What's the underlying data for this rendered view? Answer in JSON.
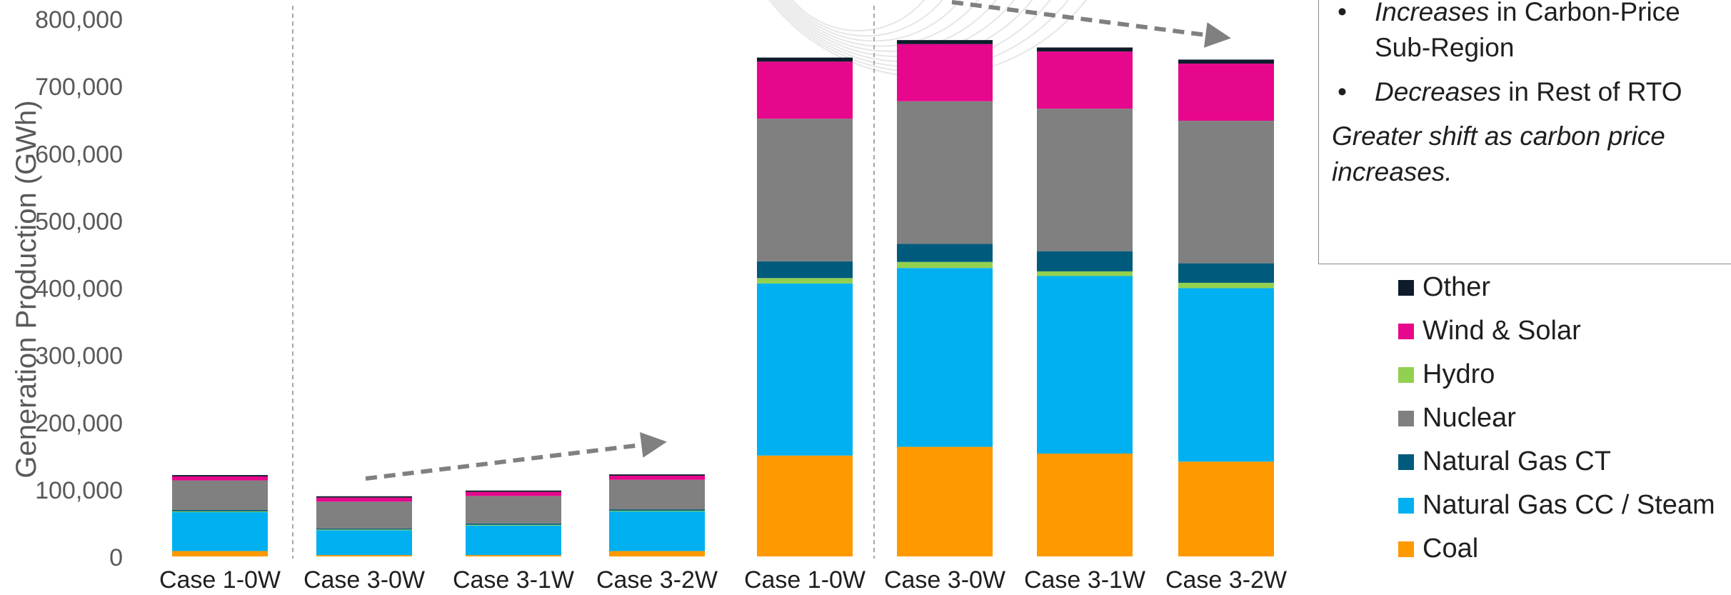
{
  "chart_data": {
    "type": "bar",
    "stacked": true,
    "ylabel": "Generation Production (GWh)",
    "ylim": [
      0,
      800000
    ],
    "yticks": [
      0,
      100000,
      200000,
      300000,
      400000,
      500000,
      600000,
      700000,
      800000
    ],
    "ytick_labels": [
      "0",
      "100,000",
      "200,000",
      "300,000",
      "400,000",
      "500,000",
      "600,000",
      "700,000",
      "800,000"
    ],
    "categories": [
      "Case 1-0W",
      "Case 3-0W",
      "Case 3-1W",
      "Case 3-2W",
      "Case 1-0W",
      "Case 3-0W",
      "Case 3-1W",
      "Case 3-2W"
    ],
    "groups": [
      {
        "categories": [
          0,
          1,
          2,
          3
        ]
      },
      {
        "categories": [
          4,
          5,
          6,
          7
        ]
      }
    ],
    "series": [
      {
        "name": "Coal",
        "color": "#ff9900",
        "values": [
          8000,
          2000,
          2000,
          8000,
          150000,
          163000,
          153000,
          141000
        ]
      },
      {
        "name": "Natural Gas CC / Steam",
        "color": "#00b0f0",
        "values": [
          58000,
          37000,
          44000,
          59000,
          256000,
          266000,
          264000,
          258000
        ]
      },
      {
        "name": "Hydro",
        "color": "#92d050",
        "values": [
          1000,
          1000,
          1000,
          1000,
          8000,
          9000,
          7000,
          8000
        ]
      },
      {
        "name": "Natural Gas CT",
        "color": "#005a7c",
        "values": [
          2000,
          1500,
          2000,
          2000,
          25000,
          27000,
          30000,
          29000
        ]
      },
      {
        "name": "Nuclear",
        "color": "#808080",
        "values": [
          44000,
          40000,
          41000,
          44000,
          212000,
          212000,
          212000,
          212000
        ]
      },
      {
        "name": "Wind & Solar",
        "color": "#e6078c",
        "values": [
          6000,
          6000,
          6000,
          6000,
          85000,
          85000,
          85000,
          85000
        ]
      },
      {
        "name": "Other",
        "color": "#0d1b2a",
        "values": [
          2000,
          2000,
          2000,
          2000,
          6000,
          6000,
          6000,
          6000
        ]
      }
    ],
    "legend": {
      "placement": "right",
      "order": [
        "Other",
        "Wind & Solar",
        "Hydro",
        "Nuclear",
        "Natural Gas CT",
        "Natural Gas CC / Steam",
        "Coal"
      ]
    },
    "grid": false
  },
  "callout": {
    "bullets": [
      {
        "bullet": "•",
        "emph": "Increases",
        "rest": " in Carbon-Price Sub-Region"
      },
      {
        "bullet": "•",
        "emph": "Decreases",
        "rest": " in Rest of RTO"
      }
    ],
    "summary": "Greater shift as carbon price increases."
  }
}
